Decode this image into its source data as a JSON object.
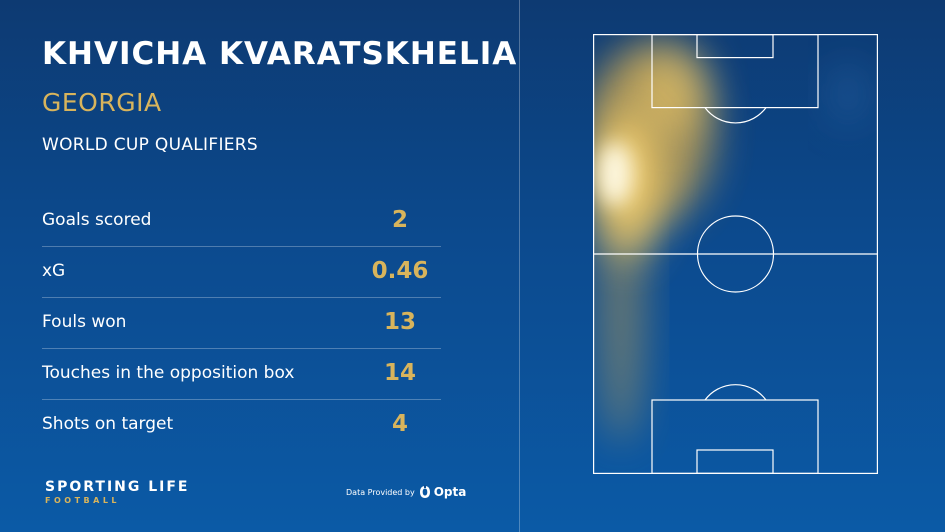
{
  "header": {
    "player_name": "KHVICHA KVARATSKHELIA",
    "country": "GEORGIA",
    "competition": "WORLD CUP QUALIFIERS"
  },
  "stats": [
    {
      "label": "Goals scored",
      "value": "2"
    },
    {
      "label": "xG",
      "value": "0.46"
    },
    {
      "label": "Fouls won",
      "value": "13"
    },
    {
      "label": "Touches in the opposition box",
      "value": "14"
    },
    {
      "label": "Shots on target",
      "value": "4"
    }
  ],
  "footer": {
    "brand_main": "SPORTING LIFE",
    "brand_sub": "FOOTBALL",
    "credit_label": "Data Provided by",
    "credit_provider": "Opta"
  },
  "heatmap": {
    "colors": {
      "hot": "#fffbe6",
      "warm": "#f5cf6b",
      "cool": "#e0b04a"
    }
  },
  "colors": {
    "background_top": "#0d3a72",
    "background_bottom": "#0b5aa6",
    "accent_gold": "#d8b45c",
    "text": "#ffffff"
  }
}
